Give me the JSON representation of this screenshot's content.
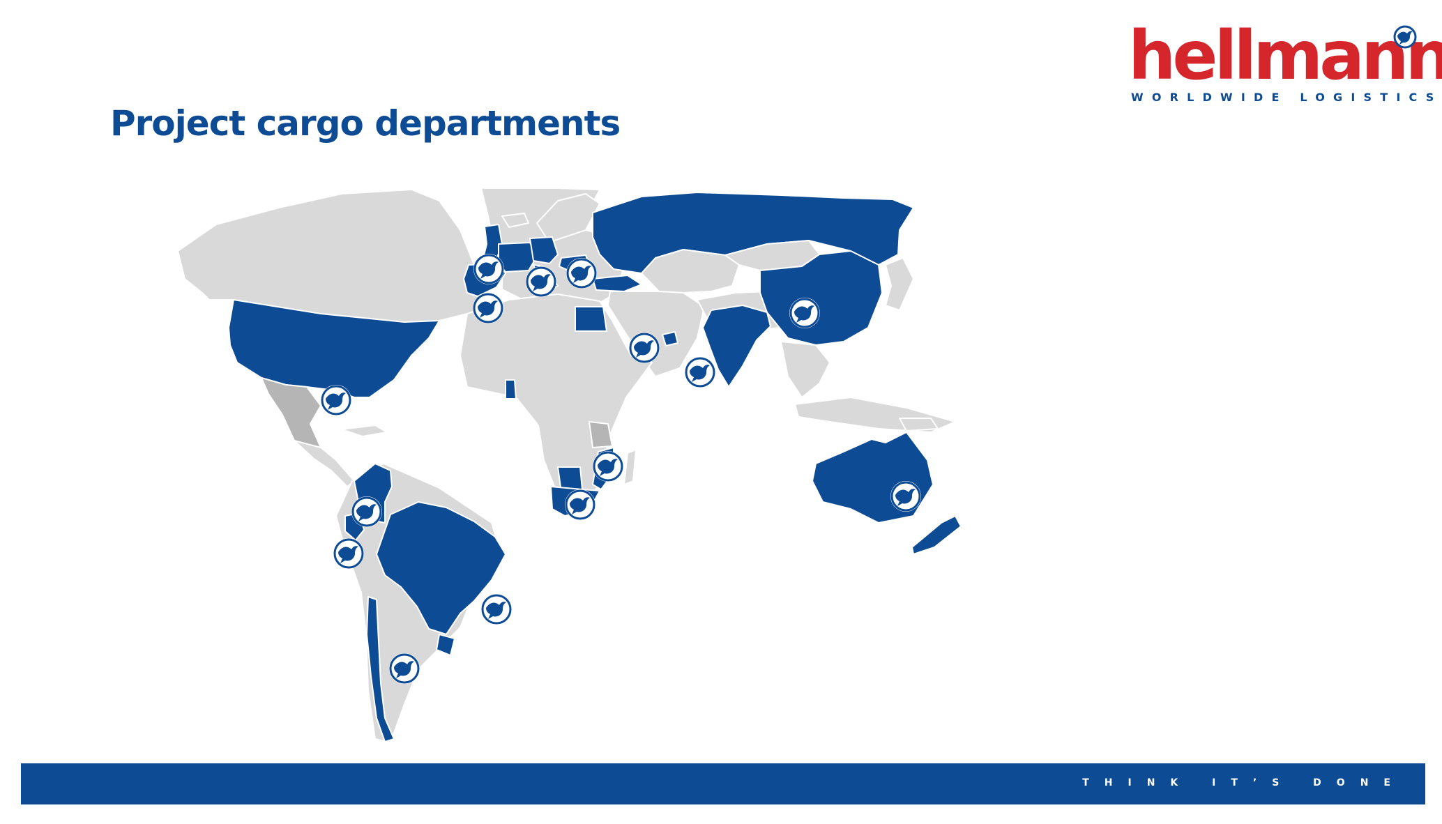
{
  "slide": {
    "title": "Project cargo departments"
  },
  "brand": {
    "name": "hellmann",
    "tagline": "WORLDWIDE LOGISTICS",
    "registered": "®",
    "primary_color": "#0d4b94",
    "accent_color": "#d5262b",
    "land_color": "#d9d9d9",
    "mark_icon": "crane-bird-icon"
  },
  "footer": {
    "slogan": "THINK IT’S DONE"
  },
  "map": {
    "type": "world-map",
    "highlighted_countries": [
      "USA",
      "Colombia",
      "Ecuador",
      "Brazil",
      "Uruguay",
      "Chile",
      "United Kingdom",
      "Spain",
      "Portugal",
      "France",
      "Germany",
      "Belgium",
      "Netherlands",
      "Italy",
      "Austria",
      "Hungary",
      "Romania",
      "Bulgaria",
      "Turkey",
      "Russia",
      "Egypt",
      "Ghana",
      "Tanzania",
      "Mozambique",
      "Botswana",
      "South Africa",
      "United Arab Emirates",
      "India",
      "Bangladesh",
      "China",
      "Australia",
      "New Zealand"
    ],
    "marker_icon": "crane-bird-icon",
    "markers": [
      {
        "id": "usa"
      },
      {
        "id": "colombia"
      },
      {
        "id": "ecuador"
      },
      {
        "id": "chile"
      },
      {
        "id": "brazil"
      },
      {
        "id": "united-kingdom"
      },
      {
        "id": "spain"
      },
      {
        "id": "germany"
      },
      {
        "id": "russia"
      },
      {
        "id": "uae"
      },
      {
        "id": "india"
      },
      {
        "id": "china"
      },
      {
        "id": "mozambique"
      },
      {
        "id": "south-africa"
      },
      {
        "id": "australia"
      }
    ]
  }
}
